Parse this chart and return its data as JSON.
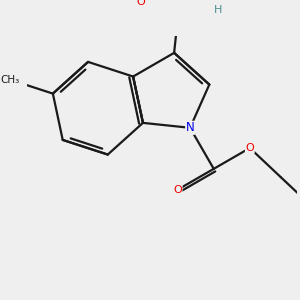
{
  "background_color": "#efefef",
  "bond_color": "#1a1a1a",
  "N_color": "#0000ee",
  "O_color": "#ee0000",
  "H_color": "#4a9090",
  "lw": 1.6,
  "figsize": [
    3.0,
    3.0
  ],
  "dpi": 100,
  "xlim": [
    -1.5,
    8.5
  ],
  "ylim": [
    -4.5,
    5.0
  ]
}
